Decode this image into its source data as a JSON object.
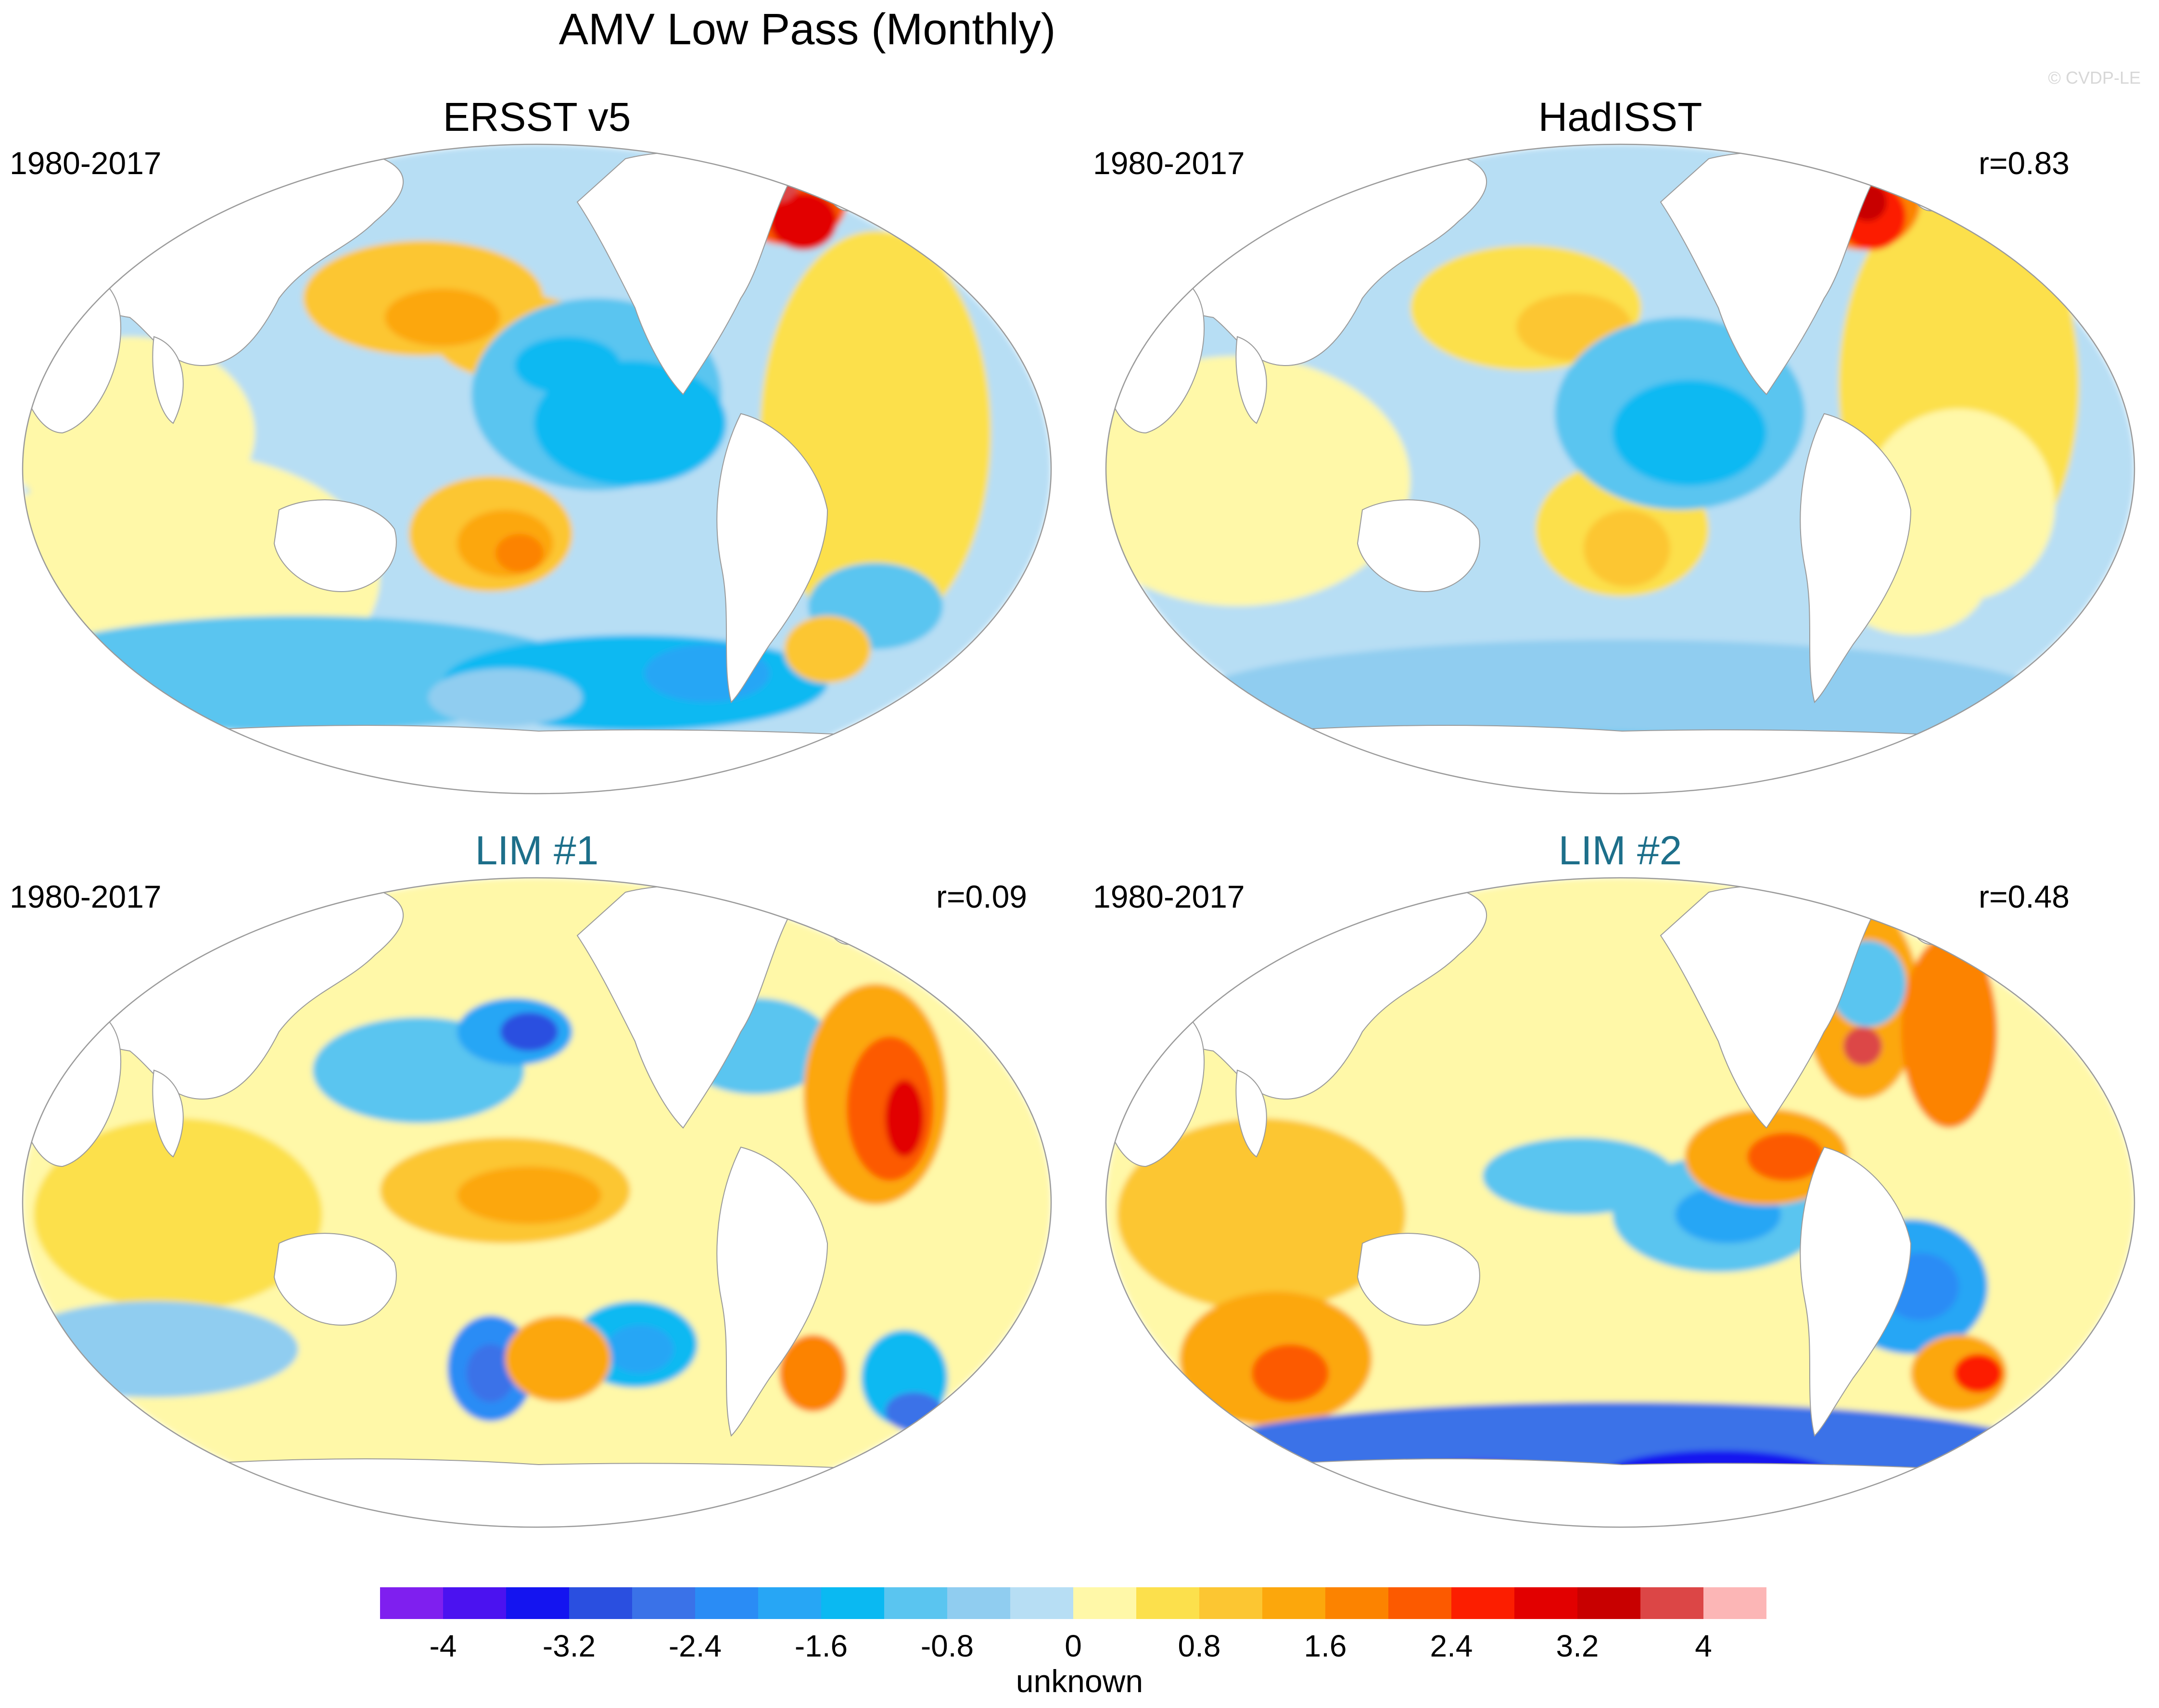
{
  "figure": {
    "title": "AMV Low Pass (Monthly)",
    "watermark": "© CVDP-LE"
  },
  "panels": [
    {
      "title": "ERSST v5",
      "title_color": "#000000",
      "period": "1980-2017",
      "corr": "",
      "scheme": "ersst"
    },
    {
      "title": "HadISST",
      "title_color": "#000000",
      "period": "1980-2017",
      "corr": "r=0.83",
      "scheme": "hadisst"
    },
    {
      "title": "LIM #1",
      "title_color": "#1d6f8a",
      "period": "1980-2017",
      "corr": "r=0.09",
      "scheme": "lim1"
    },
    {
      "title": "LIM #2",
      "title_color": "#1d6f8a",
      "period": "1980-2017",
      "corr": "r=0.48",
      "scheme": "lim2"
    }
  ],
  "colorbar": {
    "label": "unknown",
    "colors": [
      "#7f1fef",
      "#4b12f0",
      "#1414f0",
      "#2a4fe0",
      "#3a72e8",
      "#2a8cf5",
      "#27a6f5",
      "#0ab9f2",
      "#5ac5f0",
      "#90cdf0",
      "#b7def4",
      "#fff8a8",
      "#fce04c",
      "#fcc632",
      "#fca70c",
      "#fc8300",
      "#fc5a00",
      "#fc1e00",
      "#e20000",
      "#c80000",
      "#dc4646",
      "#fcb6b6"
    ],
    "tick_labels": [
      "-4",
      "-3.2",
      "-2.4",
      "-1.6",
      "-0.8",
      "0",
      "0.8",
      "1.6",
      "2.4",
      "3.2",
      "4"
    ]
  }
}
